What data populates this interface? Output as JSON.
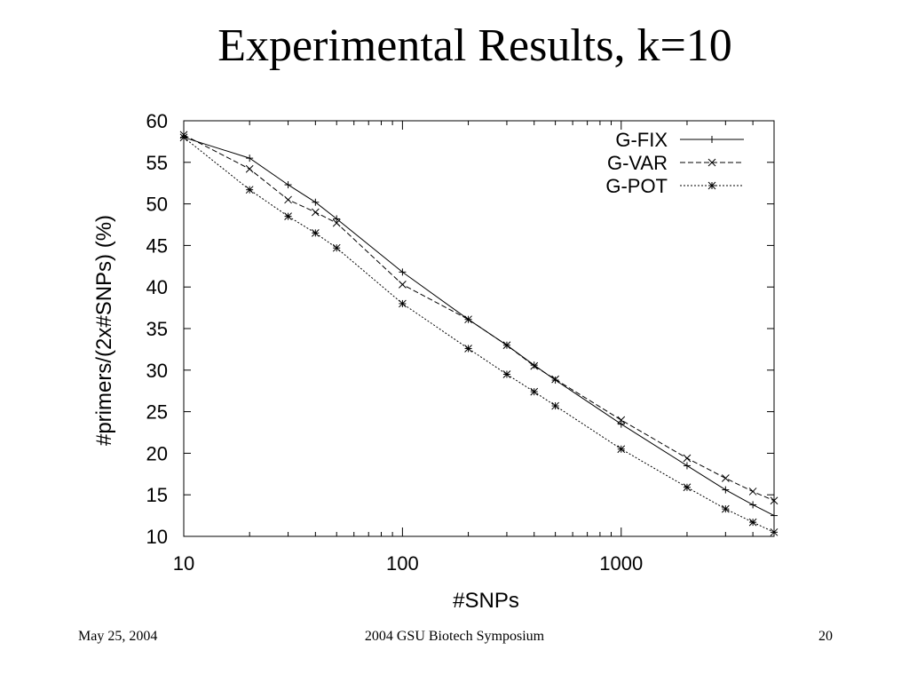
{
  "slide": {
    "title": "Experimental Results, k=10",
    "footer_left": "May 25, 2004",
    "footer_center": "2004 GSU Biotech Symposium",
    "footer_right": "20"
  },
  "chart_data": {
    "type": "line",
    "title": "",
    "xlabel": "#SNPs",
    "ylabel": "#primers/(2x#SNPs) (%)",
    "x_scale": "log",
    "xlim": [
      10,
      5000
    ],
    "ylim": [
      10,
      60
    ],
    "x_ticks": [
      10,
      100,
      1000
    ],
    "x_tick_labels": [
      "10",
      "100",
      "1000"
    ],
    "y_ticks": [
      10,
      15,
      20,
      25,
      30,
      35,
      40,
      45,
      50,
      55,
      60
    ],
    "y_tick_labels": [
      "10",
      "15",
      "20",
      "25",
      "30",
      "35",
      "40",
      "45",
      "50",
      "55",
      "60"
    ],
    "grid": false,
    "legend_position": "top-right",
    "series": [
      {
        "name": "G-FIX",
        "marker": "plus",
        "dash": "solid",
        "x": [
          10,
          20,
          30,
          40,
          50,
          100,
          200,
          300,
          400,
          500,
          1000,
          2000,
          3000,
          4000,
          5000
        ],
        "y": [
          58,
          55.5,
          52.3,
          50.2,
          48.2,
          41.8,
          36.1,
          33.0,
          30.6,
          28.8,
          23.5,
          18.5,
          15.6,
          13.8,
          12.5
        ]
      },
      {
        "name": "G-VAR",
        "marker": "x",
        "dash": "dashed",
        "x": [
          10,
          20,
          30,
          40,
          50,
          100,
          200,
          300,
          400,
          500,
          1000,
          2000,
          3000,
          4000,
          5000
        ],
        "y": [
          58.3,
          54.2,
          50.5,
          49.0,
          47.7,
          40.3,
          36.1,
          33.0,
          30.5,
          28.9,
          24.0,
          19.4,
          17.0,
          15.4,
          14.3
        ]
      },
      {
        "name": "G-POT",
        "marker": "star",
        "dash": "dotted",
        "x": [
          10,
          20,
          30,
          40,
          50,
          100,
          200,
          300,
          400,
          500,
          1000,
          2000,
          3000,
          4000,
          5000
        ],
        "y": [
          58.0,
          51.7,
          48.5,
          46.5,
          44.7,
          38.0,
          32.6,
          29.5,
          27.4,
          25.7,
          20.5,
          15.9,
          13.3,
          11.7,
          10.5
        ]
      }
    ]
  }
}
